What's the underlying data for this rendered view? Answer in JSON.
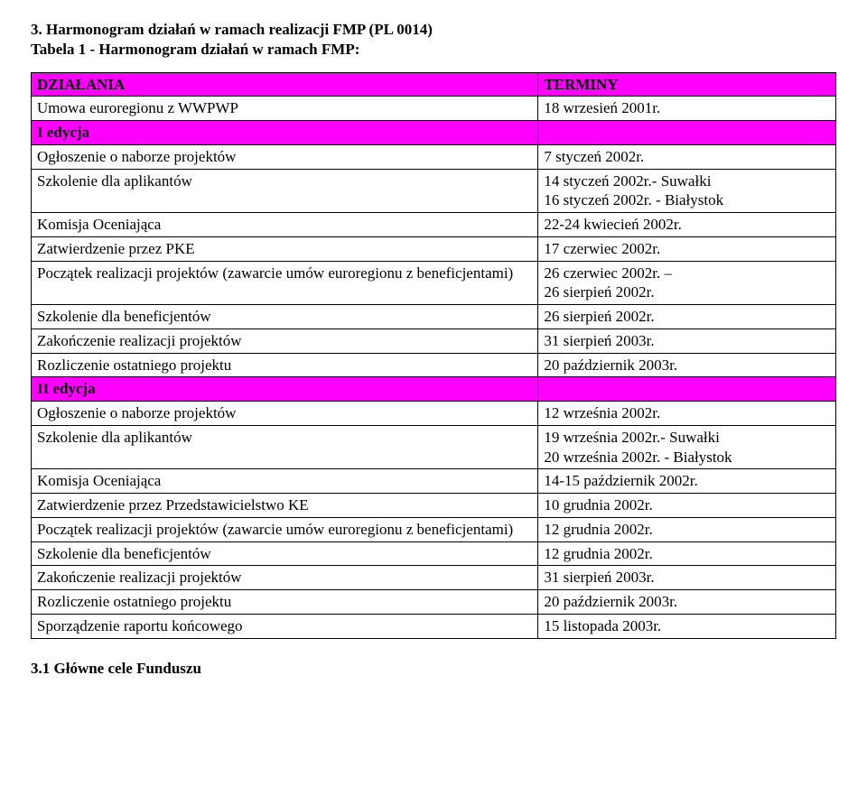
{
  "heading": {
    "line1": "3. Harmonogram działań w ramach realizacji FMP (PL 0014)",
    "line2": "Tabela 1 - Harmonogram działań w ramach FMP:"
  },
  "table": {
    "columns": {
      "left_width": "63%",
      "right_width": "37%"
    },
    "magenta": "#ff00ff",
    "rows": [
      {
        "type": "section",
        "c1": "DZIAŁANIA",
        "c2": "TERMINY"
      },
      {
        "type": "data",
        "c1": "Umowa euroregionu z WWPWP",
        "c2": "18 wrzesień 2001r."
      },
      {
        "type": "section",
        "c1": "I edycja",
        "c2": ""
      },
      {
        "type": "data",
        "c1": "Ogłoszenie o naborze projektów",
        "c2": "7 styczeń 2002r."
      },
      {
        "type": "data",
        "c1": "Szkolenie dla aplikantów",
        "c2": "14 styczeń 2002r.- Suwałki\n16 styczeń 2002r. - Białystok"
      },
      {
        "type": "data",
        "c1": "Komisja Oceniająca",
        "c2": "22-24 kwiecień 2002r."
      },
      {
        "type": "data",
        "c1": "Zatwierdzenie przez PKE",
        "c2": "17 czerwiec 2002r."
      },
      {
        "type": "data",
        "c1": "Początek realizacji projektów (zawarcie umów euroregionu z beneficjentami)",
        "c2": "26 czerwiec 2002r. –\n26 sierpień 2002r."
      },
      {
        "type": "data",
        "c1": "Szkolenie dla beneficjentów",
        "c2": "26 sierpień 2002r."
      },
      {
        "type": "data",
        "c1": "Zakończenie realizacji projektów",
        "c2": "31 sierpień 2003r."
      },
      {
        "type": "data",
        "c1": "Rozliczenie ostatniego projektu",
        "c2": "20 październik 2003r."
      },
      {
        "type": "section",
        "c1": "II edycja",
        "c2": ""
      },
      {
        "type": "data",
        "c1": "Ogłoszenie o naborze projektów",
        "c2": "12 września 2002r."
      },
      {
        "type": "data",
        "c1": "Szkolenie dla aplikantów",
        "c2": "19 września 2002r.- Suwałki\n20 września 2002r. - Białystok"
      },
      {
        "type": "data",
        "c1": "Komisja Oceniająca",
        "c2": "14-15 październik 2002r."
      },
      {
        "type": "data",
        "c1": "Zatwierdzenie przez Przedstawicielstwo KE",
        "c2": "10 grudnia 2002r."
      },
      {
        "type": "data",
        "c1": "Początek realizacji projektów (zawarcie umów euroregionu z beneficjentami)",
        "c2": "12 grudnia 2002r."
      },
      {
        "type": "data",
        "c1": "Szkolenie dla beneficjentów",
        "c2": "12 grudnia 2002r."
      },
      {
        "type": "data",
        "c1": "Zakończenie realizacji projektów",
        "c2": "31 sierpień 2003r."
      },
      {
        "type": "data",
        "c1": "Rozliczenie ostatniego projektu",
        "c2": "20 październik 2003r."
      },
      {
        "type": "data",
        "c1": "Sporządzenie raportu końcowego",
        "c2": "15 listopada 2003r."
      }
    ]
  },
  "footer": {
    "heading": "3.1 Główne cele Funduszu"
  }
}
